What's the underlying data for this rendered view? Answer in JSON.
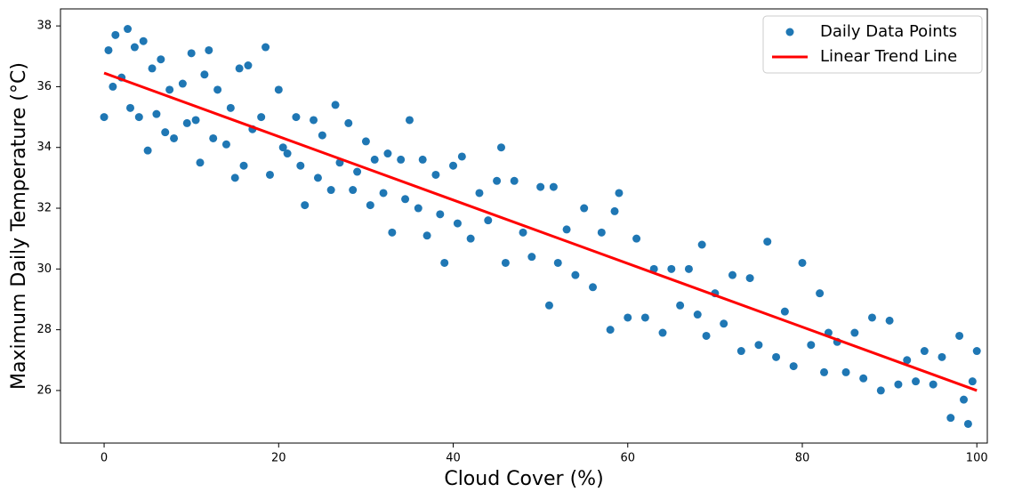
{
  "chart_data": {
    "type": "scatter",
    "xlabel": "Cloud Cover (%)",
    "ylabel": "Maximum Daily Temperature (°C)",
    "xlim": [
      -5,
      101.2
    ],
    "ylim": [
      24.27,
      38.56
    ],
    "xticks": [
      0,
      20,
      40,
      60,
      80,
      100
    ],
    "yticks": [
      26,
      28,
      30,
      32,
      34,
      36,
      38
    ],
    "legend": "upper right",
    "series": [
      {
        "name": "Daily Data Points",
        "type": "scatter",
        "color": "#1f77b4",
        "x": [
          0,
          0.5,
          1,
          1.3,
          2,
          2.7,
          3,
          3.5,
          4,
          4.5,
          5,
          5.5,
          6,
          6.5,
          7,
          7.5,
          8,
          9,
          9.5,
          10,
          10.5,
          11,
          11.5,
          12,
          12.5,
          13,
          14,
          14.5,
          15,
          15.5,
          16,
          16.5,
          17,
          18,
          18.5,
          19,
          20,
          20.5,
          21,
          22,
          22.5,
          23,
          24,
          24.5,
          25,
          26,
          26.5,
          27,
          28,
          28.5,
          29,
          30,
          30.5,
          31,
          32,
          32.5,
          33,
          34,
          34.5,
          35,
          36,
          36.5,
          37,
          38,
          38.5,
          39,
          40,
          40.5,
          41,
          42,
          43,
          44,
          45,
          45.5,
          46,
          47,
          48,
          49,
          50,
          51,
          51.5,
          52,
          53,
          54,
          55,
          56,
          57,
          58,
          58.5,
          59,
          60,
          61,
          62,
          63,
          64,
          65,
          66,
          67,
          68,
          68.5,
          69,
          70,
          71,
          72,
          73,
          74,
          75,
          76,
          77,
          78,
          79,
          80,
          81,
          82,
          82.5,
          83,
          84,
          85,
          86,
          87,
          88,
          89,
          90,
          91,
          92,
          93,
          94,
          95,
          96,
          97,
          98,
          98.5,
          99,
          99.5,
          100
        ],
        "values": [
          35.0,
          37.2,
          36.0,
          37.7,
          36.3,
          37.9,
          35.3,
          37.3,
          35.0,
          37.5,
          33.9,
          36.6,
          35.1,
          36.9,
          34.5,
          35.9,
          34.3,
          36.1,
          34.8,
          37.1,
          34.9,
          33.5,
          36.4,
          37.2,
          34.3,
          35.9,
          34.1,
          35.3,
          33.0,
          36.6,
          33.4,
          36.7,
          34.6,
          35.0,
          37.3,
          33.1,
          35.9,
          34.0,
          33.8,
          35.0,
          33.4,
          32.1,
          34.9,
          33.0,
          34.4,
          32.6,
          35.4,
          33.5,
          34.8,
          32.6,
          33.2,
          34.2,
          32.1,
          33.6,
          32.5,
          33.8,
          31.2,
          33.6,
          32.3,
          34.9,
          32.0,
          33.6,
          31.1,
          33.1,
          31.8,
          30.2,
          33.4,
          31.5,
          33.7,
          31.0,
          32.5,
          31.6,
          32.9,
          34.0,
          30.2,
          32.9,
          31.2,
          30.4,
          32.7,
          28.8,
          32.7,
          30.2,
          31.3,
          29.8,
          32.0,
          29.4,
          31.2,
          28.0,
          31.9,
          32.5,
          28.4,
          31.0,
          28.4,
          30.0,
          27.9,
          30.0,
          28.8,
          30.0,
          28.5,
          30.8,
          27.8,
          29.2,
          28.2,
          29.8,
          27.3,
          29.7,
          27.5,
          30.9,
          27.1,
          28.6,
          26.8,
          30.2,
          27.5,
          29.2,
          26.6,
          27.9,
          27.6,
          26.6,
          27.9,
          26.4,
          28.4,
          26.0,
          28.3,
          26.2,
          27.0,
          26.3,
          27.3,
          26.2,
          27.1,
          25.1,
          27.8,
          25.7,
          24.9,
          26.3,
          27.3
        ]
      },
      {
        "name": "Linear Trend Line",
        "type": "line",
        "color": "#ff0000",
        "x": [
          0,
          100
        ],
        "values": [
          36.45,
          26.0
        ]
      }
    ]
  }
}
